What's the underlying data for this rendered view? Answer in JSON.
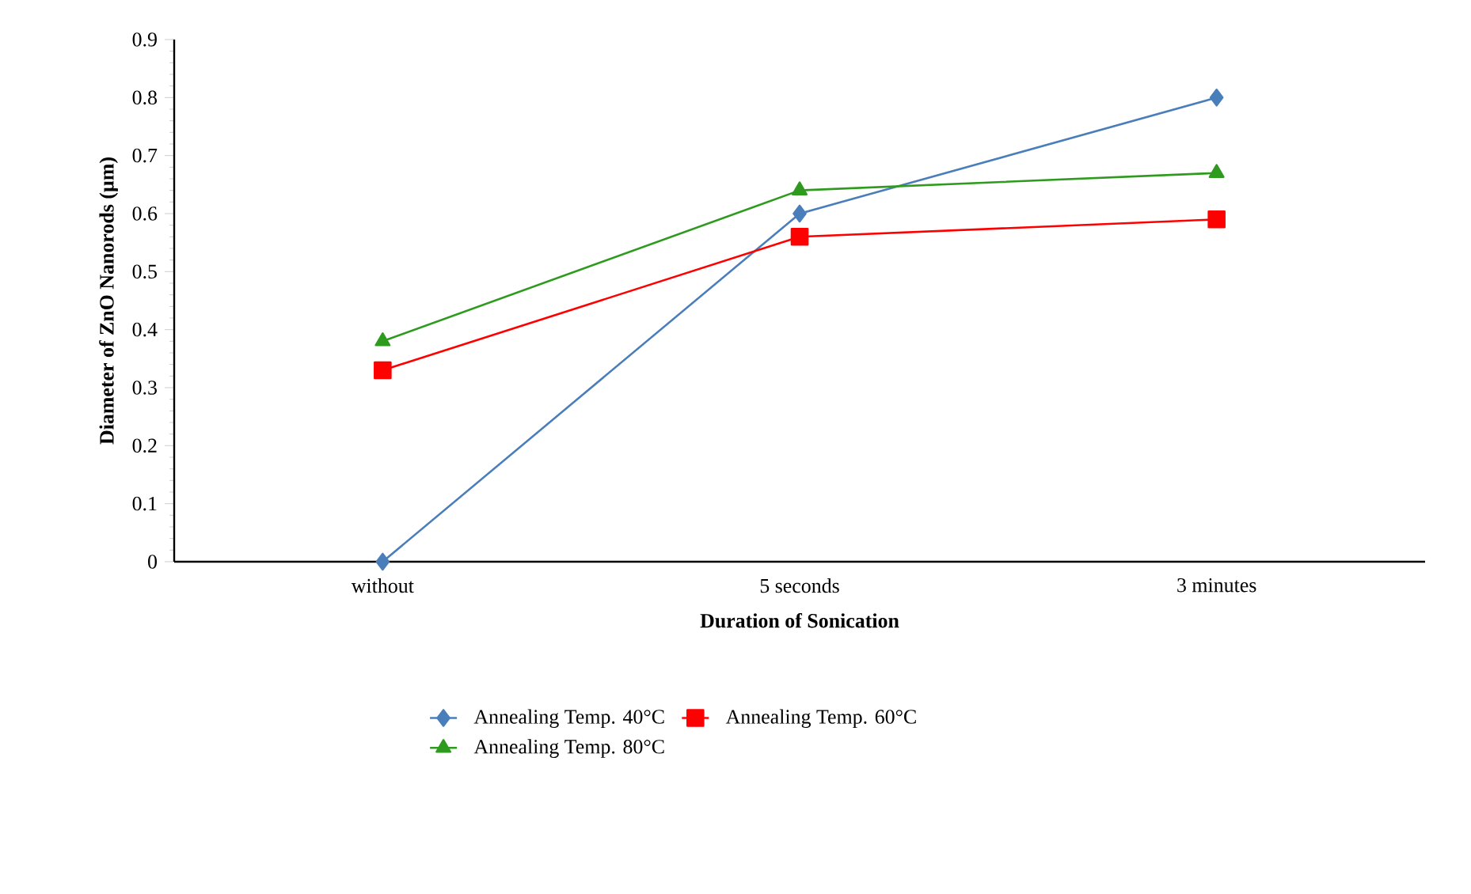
{
  "chart_data": {
    "type": "line",
    "xlabel": "Duration of Sonication",
    "ylabel": "Diameter of ZnO Nanorods (µm)",
    "categories": [
      "without",
      "5 seconds",
      "3 minutes"
    ],
    "series": [
      {
        "name": "Annealing Temp. 40°C",
        "color": "#4a7ebb",
        "marker": "diamond",
        "values": [
          0,
          0.6,
          0.8
        ]
      },
      {
        "name": "Annealing Temp. 60°C",
        "color": "#ff0000",
        "marker": "square",
        "values": [
          0.33,
          0.56,
          0.59
        ]
      },
      {
        "name": "Annealing Temp. 80°C",
        "color": "#2e9b1e",
        "marker": "triangle",
        "values": [
          0.38,
          0.64,
          0.67
        ]
      }
    ],
    "ylim": [
      0,
      0.9
    ],
    "yticks": [
      0,
      0.1,
      0.2,
      0.3,
      0.4,
      0.5,
      0.6,
      0.7,
      0.8,
      0.9
    ],
    "grid": false,
    "legend": "bottom",
    "line_style": "solid"
  }
}
